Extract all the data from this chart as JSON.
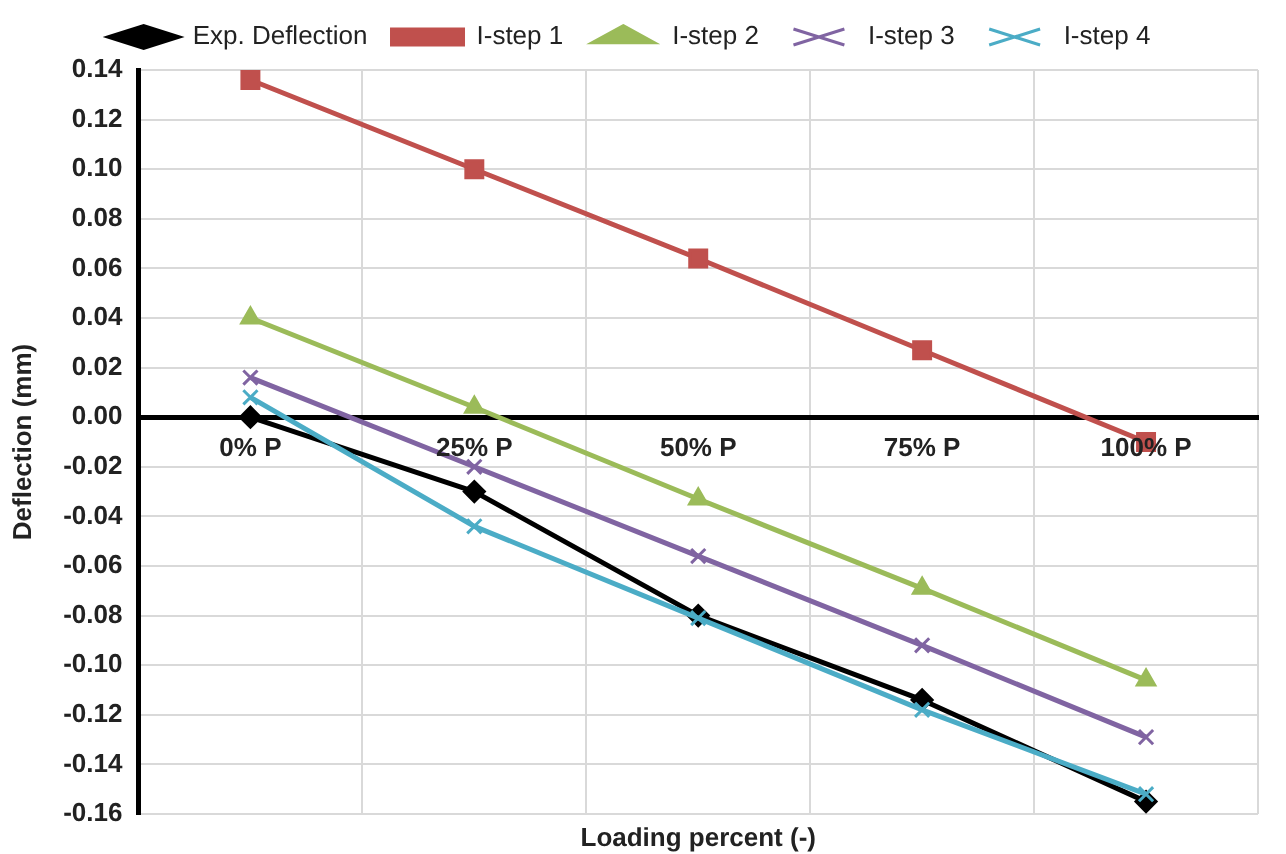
{
  "chart_data": {
    "type": "line",
    "xlabel": "Loading percent (-)",
    "ylabel": "Deflection (mm)",
    "categories": [
      "0% P",
      "25% P",
      "50% P",
      "75% P",
      "100% P"
    ],
    "series": [
      {
        "name": "Exp. Deflection",
        "color": "#000000",
        "marker": "diamond",
        "values": [
          0.0,
          -0.03,
          -0.08,
          -0.114,
          -0.155
        ]
      },
      {
        "name": "I-step 1",
        "color": "#c0504d",
        "marker": "square",
        "values": [
          0.136,
          0.1,
          0.064,
          0.027,
          -0.01
        ]
      },
      {
        "name": "I-step 2",
        "color": "#9bbb59",
        "marker": "triangle",
        "values": [
          0.04,
          0.004,
          -0.033,
          -0.069,
          -0.106
        ]
      },
      {
        "name": "I-step 3",
        "color": "#8064a2",
        "marker": "cross",
        "values": [
          0.016,
          -0.02,
          -0.056,
          -0.092,
          -0.129
        ]
      },
      {
        "name": "I-step 4",
        "color": "#4bacc6",
        "marker": "cross",
        "values": [
          0.008,
          -0.044,
          -0.081,
          -0.118,
          -0.152
        ]
      }
    ],
    "ylim": [
      -0.16,
      0.14
    ],
    "yticks": [
      {
        "value": -0.16,
        "label": "-0.16"
      },
      {
        "value": -0.14,
        "label": "-0.14"
      },
      {
        "value": -0.12,
        "label": "-0.12"
      },
      {
        "value": -0.1,
        "label": "-0.10"
      },
      {
        "value": -0.08,
        "label": "-0.08"
      },
      {
        "value": -0.06,
        "label": "-0.06"
      },
      {
        "value": -0.04,
        "label": "-0.04"
      },
      {
        "value": -0.02,
        "label": "-0.02"
      },
      {
        "value": 0,
        "label": "0.00"
      },
      {
        "value": 0.02,
        "label": "0.02"
      },
      {
        "value": 0.04,
        "label": "0.04"
      },
      {
        "value": 0.06,
        "label": "0.06"
      },
      {
        "value": 0.08,
        "label": "0.08"
      },
      {
        "value": 0.1,
        "label": "0.10"
      },
      {
        "value": 0.12,
        "label": "0.12"
      },
      {
        "value": 0.14,
        "label": "0.14"
      }
    ],
    "grid": true,
    "legend": "top",
    "line_style": "solid"
  }
}
